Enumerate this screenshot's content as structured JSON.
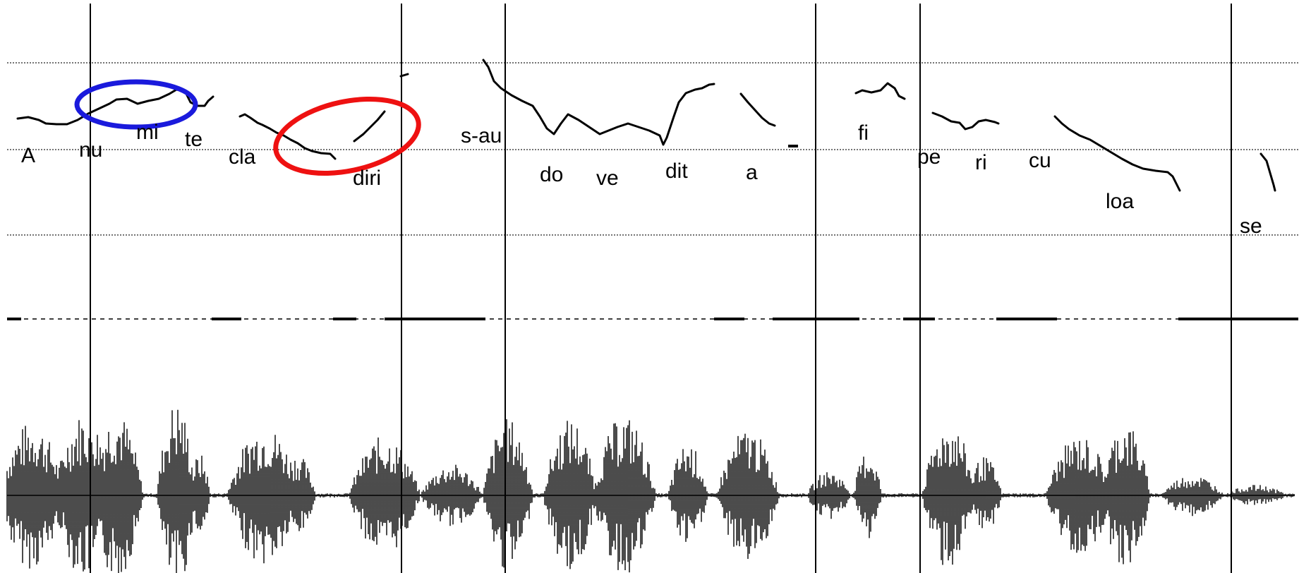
{
  "syllables": {
    "a": "A",
    "nu": "nu",
    "mi": "mi",
    "te": "te",
    "cla": "cla",
    "diri": "diri",
    "s_au": "s-au",
    "do": "do",
    "ve": "ve",
    "dit": "dit",
    "a2": "a",
    "dash": "-",
    "fi": "fi",
    "pe": "pe",
    "ri": "ri",
    "cu": "cu",
    "loa": "loa",
    "se": "se"
  },
  "highlights": [
    {
      "name": "blue-highlight",
      "color": "#1a1adc"
    },
    {
      "name": "red-highlight",
      "color": "#ee1111"
    }
  ]
}
